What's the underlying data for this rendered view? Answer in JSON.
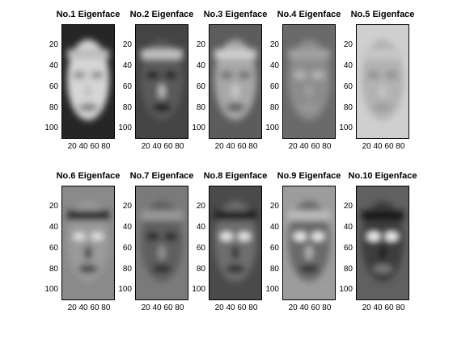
{
  "panels": [
    {
      "title": "No.1 Eigenface",
      "y_ticks": [
        "20",
        "40",
        "60",
        "80",
        "100"
      ],
      "x_ticks": "20 40 60 80"
    },
    {
      "title": "No.2 Eigenface",
      "y_ticks": [
        "20",
        "40",
        "60",
        "80",
        "100"
      ],
      "x_ticks": "20 40 60 80"
    },
    {
      "title": "No.3 Eigenface",
      "y_ticks": [
        "20",
        "40",
        "60",
        "80",
        "100"
      ],
      "x_ticks": "20 40 60 80"
    },
    {
      "title": "No.4 Eigenface",
      "y_ticks": [
        "20",
        "40",
        "60",
        "80",
        "100"
      ],
      "x_ticks": "20 40 60 80"
    },
    {
      "title": "No.5 Eigenface",
      "y_ticks": [
        "20",
        "40",
        "60",
        "80",
        "100"
      ],
      "x_ticks": "20 40 60 80"
    },
    {
      "title": "No.6 Eigenface",
      "y_ticks": [
        "20",
        "40",
        "60",
        "80",
        "100"
      ],
      "x_ticks": "20 40 60 80"
    },
    {
      "title": "No.7 Eigenface",
      "y_ticks": [
        "20",
        "40",
        "60",
        "80",
        "100"
      ],
      "x_ticks": "20 40 60 80"
    },
    {
      "title": "No.8 Eigenface",
      "y_ticks": [
        "20",
        "40",
        "60",
        "80",
        "100"
      ],
      "x_ticks": "20 40 60 80"
    },
    {
      "title": "No.9 Eigenface",
      "y_ticks": [
        "20",
        "40",
        "60",
        "80",
        "100"
      ],
      "x_ticks": "20 40 60 80"
    },
    {
      "title": "No.10 Eigenface",
      "y_ticks": [
        "20",
        "40",
        "60",
        "80",
        "100"
      ],
      "x_ticks": "20 40 60 80"
    }
  ]
}
